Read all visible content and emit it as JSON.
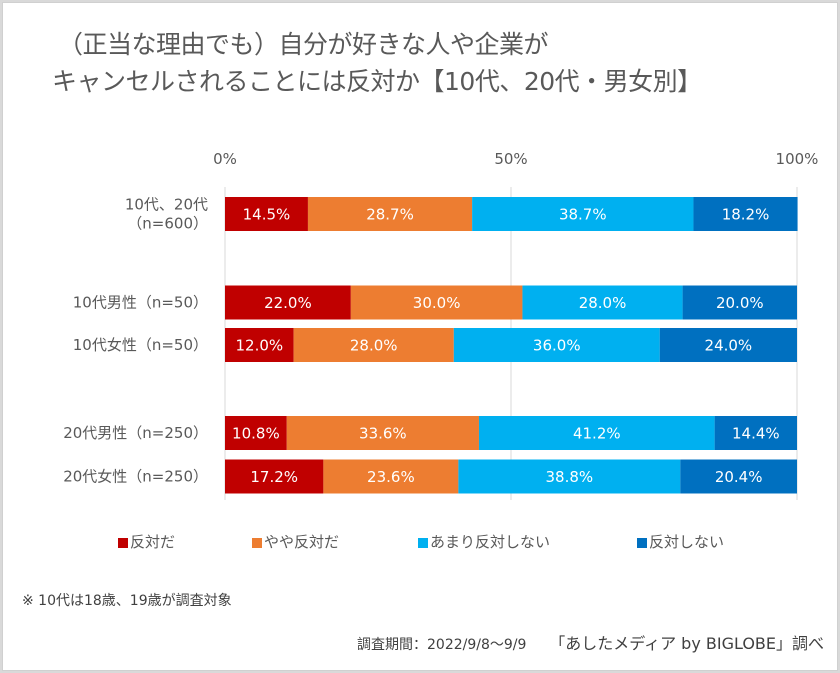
{
  "chart_data": {
    "type": "bar",
    "orientation": "horizontal",
    "stacked": true,
    "title": "（正当な理由でも）自分が好きな人や企業がキャンセルされることには反対か【10代、20代・男女別】",
    "title_lines": [
      "（正当な理由でも）自分が好きな人や企業が",
      "キャンセルされることには反対か【10代、20代・男女別】"
    ],
    "categories": [
      [
        "10代、20代",
        "（n=600）"
      ],
      [
        "10代男性（n=50）"
      ],
      [
        "10代女性（n=50）"
      ],
      [
        "20代男性（n=250）"
      ],
      [
        "20代女性（n=250）"
      ]
    ],
    "category_group_gap_after": [
      0,
      2
    ],
    "series": [
      {
        "name": "反対だ",
        "color": "#c00000",
        "values": [
          14.5,
          22.0,
          12.0,
          10.8,
          17.2
        ]
      },
      {
        "name": "やや反対だ",
        "color": "#ed7d31",
        "values": [
          28.7,
          30.0,
          28.0,
          33.6,
          23.6
        ]
      },
      {
        "name": "あまり反対しない",
        "color": "#00b0f0",
        "values": [
          38.7,
          28.0,
          36.0,
          41.2,
          38.8
        ]
      },
      {
        "name": "反対しない",
        "color": "#0070c0",
        "values": [
          18.2,
          20.0,
          24.0,
          14.4,
          20.4
        ]
      }
    ],
    "value_format": "%.1f%",
    "xlim": [
      0,
      100
    ],
    "xticks": [
      0,
      50,
      100
    ],
    "xtick_labels": [
      "0%",
      "50%",
      "100%"
    ],
    "xlabel": "",
    "ylabel": "",
    "grid": true,
    "legend_position": "bottom"
  },
  "footer": {
    "note": "※ 10代は18歳、19歳が調査対象",
    "period": "調査期間：2022/9/8～9/9",
    "credit": "「あしたメディア by BIGLOBE」調べ"
  }
}
